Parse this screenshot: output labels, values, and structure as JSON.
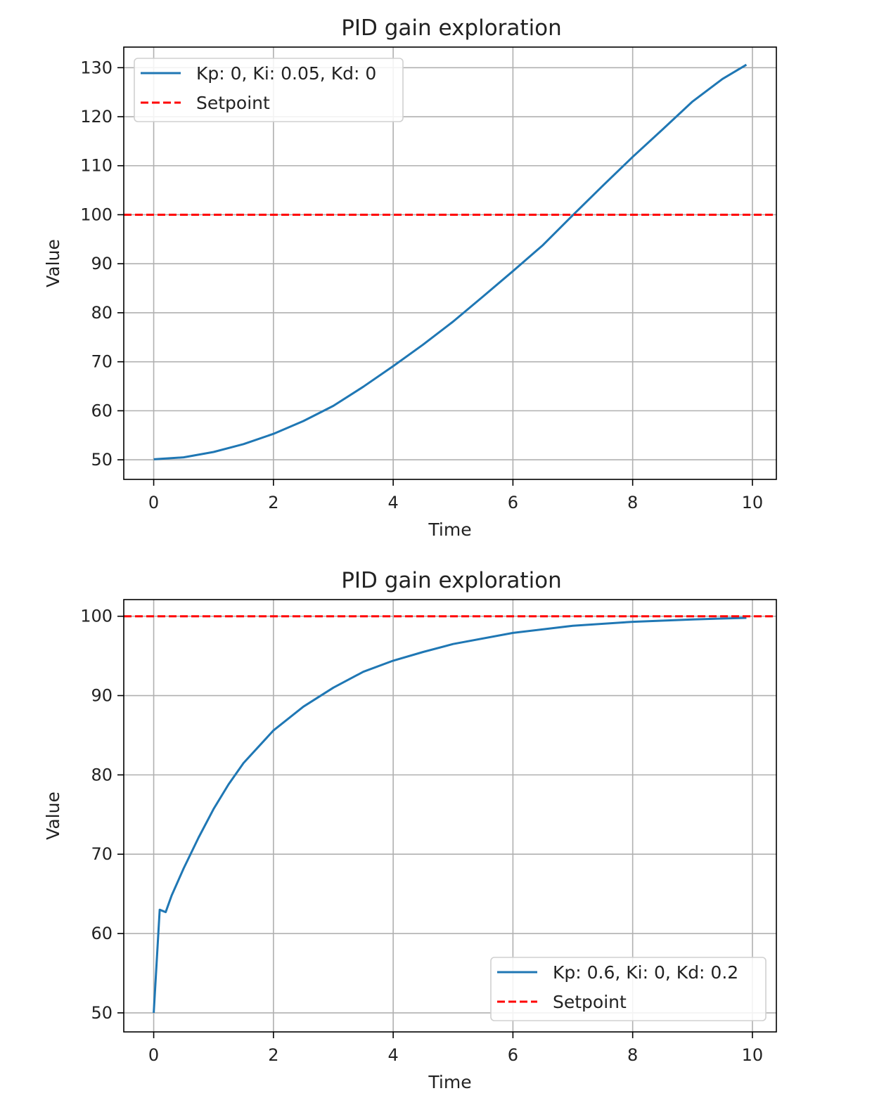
{
  "chart_data": [
    {
      "type": "line",
      "title": "PID gain exploration",
      "xlabel": "Time",
      "ylabel": "Value",
      "xlim": [
        -0.5,
        10.4
      ],
      "ylim": [
        46,
        134.2
      ],
      "xticks": [
        0,
        2,
        4,
        6,
        8,
        10
      ],
      "yticks": [
        50,
        60,
        70,
        80,
        90,
        100,
        110,
        120,
        130
      ],
      "grid": true,
      "legend_position": "upper-left",
      "series": [
        {
          "name": "Kp: 0, Ki: 0.05, Kd: 0",
          "color": "#1f77b4",
          "style": "solid",
          "x": [
            0,
            0.5,
            1,
            1.5,
            2,
            2.5,
            3,
            3.5,
            4,
            4.5,
            5,
            5.5,
            6,
            6.5,
            7,
            7.5,
            8,
            8.5,
            9,
            9.5,
            9.9
          ],
          "y": [
            50.1,
            50.5,
            51.6,
            53.2,
            55.3,
            57.9,
            61,
            64.9,
            69.1,
            73.5,
            78.2,
            83.3,
            88.5,
            93.8,
            99.9,
            105.9,
            111.8,
            117.4,
            123.1,
            127.7,
            130.6
          ]
        },
        {
          "name": "Setpoint",
          "color": "#ff0000",
          "style": "dashed",
          "x": [
            -0.5,
            10.4
          ],
          "y": [
            100,
            100
          ]
        }
      ]
    },
    {
      "type": "line",
      "title": "PID gain exploration",
      "xlabel": "Time",
      "ylabel": "Value",
      "xlim": [
        -0.5,
        10.4
      ],
      "ylim": [
        47.6,
        102.1
      ],
      "xticks": [
        0,
        2,
        4,
        6,
        8,
        10
      ],
      "yticks": [
        50,
        60,
        70,
        80,
        90,
        100
      ],
      "grid": true,
      "legend_position": "lower-right",
      "series": [
        {
          "name": "Kp: 0.6, Ki: 0, Kd: 0.2",
          "color": "#1f77b4",
          "style": "solid",
          "x": [
            0,
            0.1,
            0.2,
            0.3,
            0.5,
            0.75,
            1,
            1.25,
            1.5,
            2,
            2.5,
            3,
            3.5,
            4,
            4.5,
            5,
            6,
            7,
            8,
            9,
            9.9
          ],
          "y": [
            50,
            63,
            62.7,
            64.8,
            68.2,
            72.1,
            75.7,
            78.8,
            81.5,
            85.6,
            88.6,
            91,
            93,
            94.4,
            95.5,
            96.5,
            97.9,
            98.8,
            99.3,
            99.6,
            99.8
          ]
        },
        {
          "name": "Setpoint",
          "color": "#ff0000",
          "style": "dashed",
          "x": [
            -0.5,
            10.4
          ],
          "y": [
            100,
            100
          ]
        }
      ]
    }
  ]
}
